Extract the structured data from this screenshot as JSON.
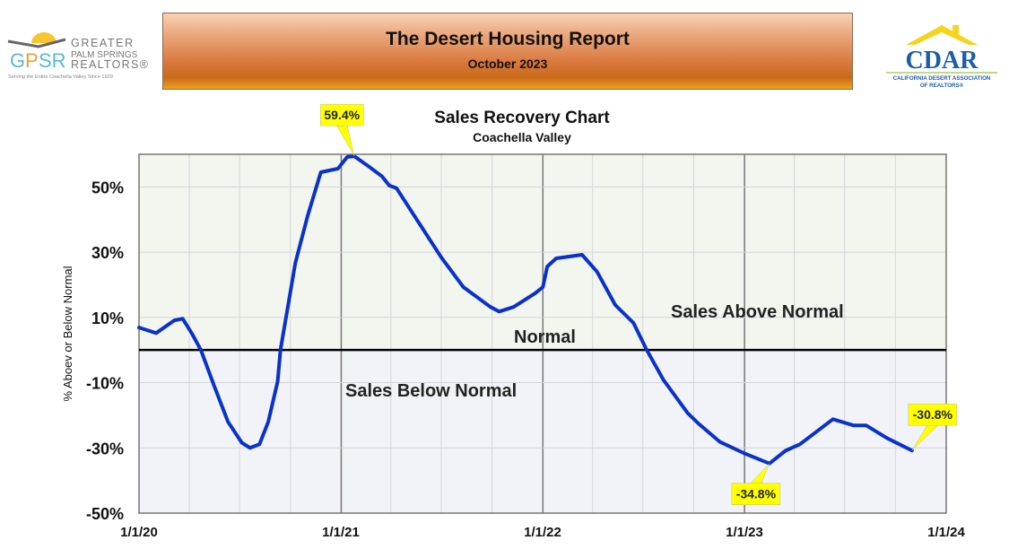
{
  "header": {
    "title": "The Desert Housing Report",
    "subtitle": "October 2023"
  },
  "logos": {
    "left": {
      "mark": "GPSR",
      "line1": "GREATER",
      "line2": "PALM SPRINGS",
      "line3": "REALTORS®",
      "tagline": "Serving the Entire Coachella Valley Since 1929"
    },
    "right": {
      "mark": "CDAR",
      "line1": "CALIFORNIA DESERT ASSOCIATION",
      "line2": "OF REALTORS®"
    }
  },
  "colors": {
    "line": "#0a32c8",
    "above_bg": "#f3f5ef",
    "below_bg": "#f1f3f8",
    "callout": "#ffff00",
    "header_accent": "#d9783e"
  },
  "chart_data": {
    "type": "line",
    "title": "Sales Recovery Chart",
    "subtitle": "Coachella Valley",
    "xlabel": "",
    "ylabel": "% Aboev or Below Normal",
    "xlim": [
      "2020-01-01",
      "2024-01-01"
    ],
    "ylim": [
      -50,
      60
    ],
    "x_ticks": [
      "1/1/20",
      "1/1/21",
      "1/1/22",
      "1/1/23",
      "1/1/24"
    ],
    "y_ticks": [
      {
        "v": 50,
        "label": "50%"
      },
      {
        "v": 30,
        "label": "30%"
      },
      {
        "v": 10,
        "label": "10%"
      },
      {
        "v": -10,
        "label": "-10%"
      },
      {
        "v": -30,
        "label": "-30%"
      },
      {
        "v": -50,
        "label": "-50%"
      }
    ],
    "grid": true,
    "reference_line": {
      "value": 0,
      "label": "Normal"
    },
    "region_labels": {
      "above": "Sales Above Normal",
      "below": "Sales Below Normal"
    },
    "annotations": [
      {
        "x": "2021-01-25",
        "y": 59.4,
        "label": "59.4%"
      },
      {
        "x": "2023-02-15",
        "y": -34.8,
        "label": "-34.8%"
      },
      {
        "x": "2023-10-31",
        "y": -30.8,
        "label": "-30.8%"
      }
    ],
    "x": [
      "2020-01-01",
      "2020-02-01",
      "2020-03-05",
      "2020-03-20",
      "2020-04-06",
      "2020-04-22",
      "2020-05-16",
      "2020-06-10",
      "2020-07-05",
      "2020-07-20",
      "2020-08-06",
      "2020-08-22",
      "2020-09-08",
      "2020-09-13",
      "2020-10-10",
      "2020-11-01",
      "2020-11-25",
      "2020-12-26",
      "2021-01-12",
      "2021-01-25",
      "2021-02-18",
      "2021-03-16",
      "2021-03-29",
      "2021-04-11",
      "2021-05-20",
      "2021-07-01",
      "2021-08-10",
      "2021-09-28",
      "2021-10-14",
      "2021-11-09",
      "2021-12-18",
      "2022-01-01",
      "2022-01-09",
      "2022-01-25",
      "2022-03-13",
      "2022-04-09",
      "2022-05-12",
      "2022-06-14",
      "2022-07-08",
      "2022-08-07",
      "2022-09-20",
      "2022-10-10",
      "2022-11-17",
      "2023-01-01",
      "2023-02-15",
      "2023-03-16",
      "2023-04-11",
      "2023-06-10",
      "2023-07-17",
      "2023-08-09",
      "2023-09-16",
      "2023-10-31"
    ],
    "values": [
      6.9,
      5.2,
      9.1,
      9.6,
      5.0,
      0,
      -11.0,
      -22.0,
      -28.4,
      -30.0,
      -28.9,
      -22.0,
      -9.6,
      0,
      26.7,
      41.0,
      54.5,
      55.6,
      59.2,
      59.4,
      56.5,
      53.2,
      50.4,
      49.6,
      39.4,
      28.4,
      19.3,
      13.2,
      11.8,
      13.2,
      17.4,
      19.3,
      25.6,
      28.1,
      29.2,
      24.0,
      13.8,
      8.3,
      0,
      -9.1,
      -19.3,
      -22.6,
      -28.1,
      -31.7,
      -34.8,
      -30.9,
      -28.9,
      -21.2,
      -23.1,
      -23.1,
      -27.0,
      -30.8
    ]
  }
}
